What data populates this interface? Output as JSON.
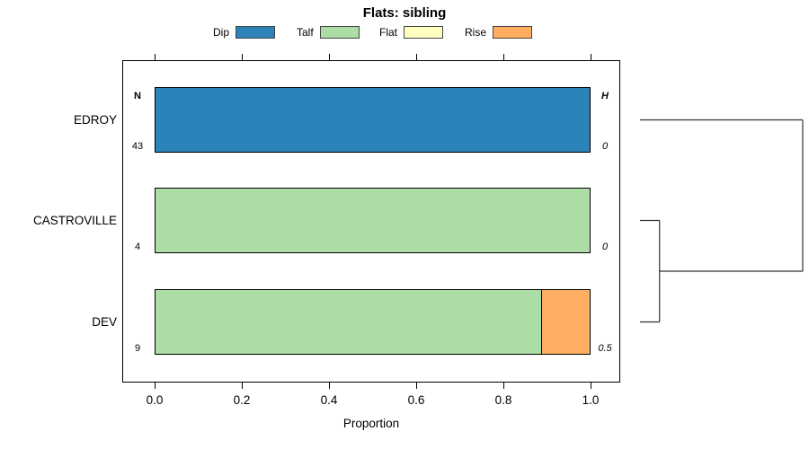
{
  "chart_data": {
    "type": "bar",
    "orientation": "horizontal",
    "stacked": true,
    "title": "Flats: sibling",
    "xlabel": "Proportion",
    "xlim": [
      0,
      1
    ],
    "grid": false,
    "x_ticks": [
      {
        "value": 0.0,
        "label": "0.0"
      },
      {
        "value": 0.2,
        "label": "0.2"
      },
      {
        "value": 0.4,
        "label": "0.4"
      },
      {
        "value": 0.6,
        "label": "0.6"
      },
      {
        "value": 0.8,
        "label": "0.8"
      },
      {
        "value": 1.0,
        "label": "1.0"
      }
    ],
    "categories": [
      "EDROY",
      "CASTROVILLE",
      "DEV"
    ],
    "series": [
      {
        "name": "Dip",
        "color": "#2B83BA",
        "values": [
          1.0,
          0.0,
          0.0
        ]
      },
      {
        "name": "Talf",
        "color": "#ABDDA4",
        "values": [
          0.0,
          1.0,
          0.889
        ]
      },
      {
        "name": "Flat",
        "color": "#FFFFBF",
        "values": [
          0.0,
          0.0,
          0.0
        ]
      },
      {
        "name": "Rise",
        "color": "#FDAE61",
        "values": [
          0.0,
          0.0,
          0.111
        ]
      }
    ],
    "n_column": {
      "header": "N",
      "values": [
        "43",
        "4",
        "9"
      ]
    },
    "h_column": {
      "header": "H",
      "values": [
        "0",
        "0",
        "0.5"
      ]
    },
    "legend": {
      "position": "top",
      "entries": [
        "Dip",
        "Talf",
        "Flat",
        "Rise"
      ]
    },
    "dendrogram": {
      "side": "right",
      "tree": {
        "height": 1.0,
        "children": [
          {
            "leaf": "EDROY"
          },
          {
            "height": 0.12,
            "children": [
              {
                "leaf": "CASTROVILLE"
              },
              {
                "leaf": "DEV"
              }
            ]
          }
        ]
      }
    }
  }
}
